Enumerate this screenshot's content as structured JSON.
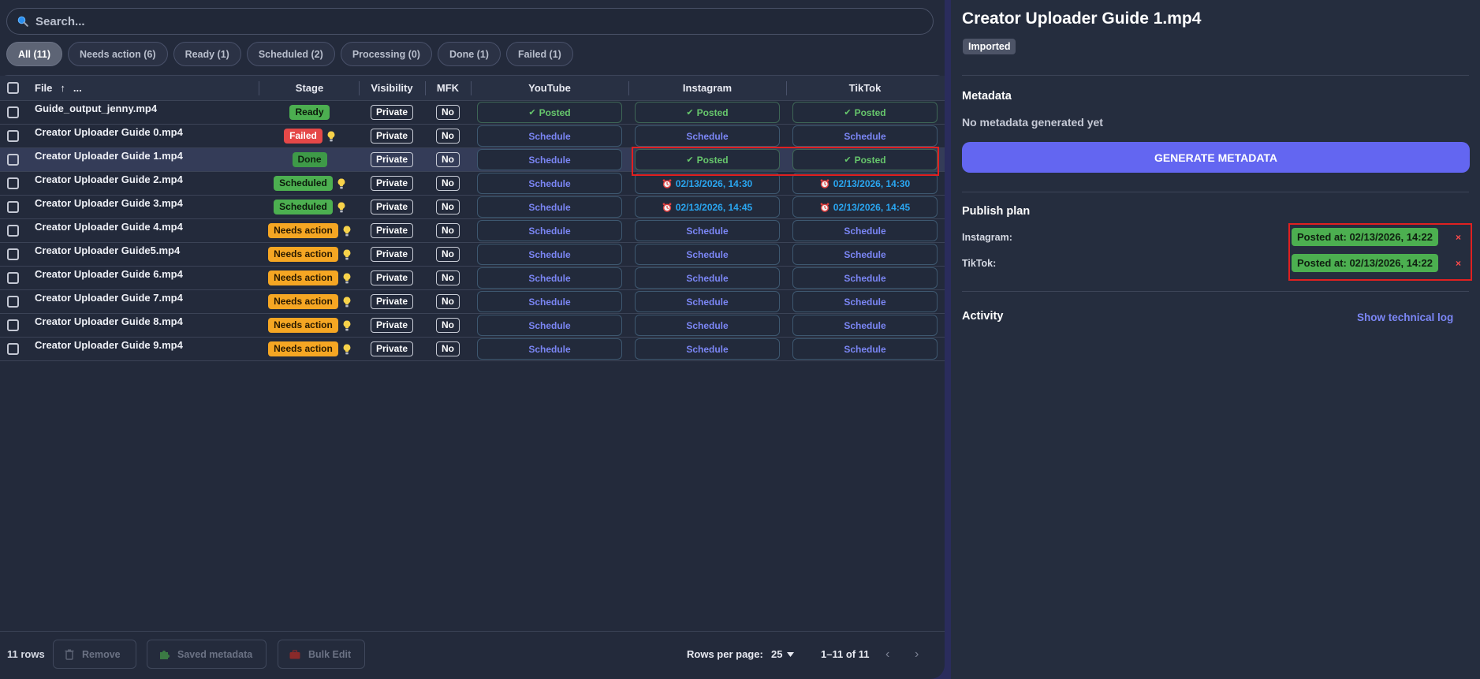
{
  "search": {
    "placeholder": "Search..."
  },
  "filters": [
    {
      "label": "All (11)",
      "active": true
    },
    {
      "label": "Needs action (6)"
    },
    {
      "label": "Ready (1)"
    },
    {
      "label": "Scheduled (2)"
    },
    {
      "label": "Processing (0)"
    },
    {
      "label": "Done (1)"
    },
    {
      "label": "Failed (1)"
    }
  ],
  "columns": {
    "file": "File",
    "sort_indicator": "↑",
    "more": "...",
    "stage": "Stage",
    "visibility": "Visibility",
    "mfk": "MFK",
    "youtube": "YouTube",
    "instagram": "Instagram",
    "tiktok": "TikTok"
  },
  "rows": [
    {
      "file": "Guide_output_jenny.mp4",
      "stage": "Ready",
      "stage_type": "ready",
      "bulb": false,
      "visibility": "Private",
      "mfk": "No",
      "youtube": {
        "type": "posted",
        "text": "Posted"
      },
      "instagram": {
        "type": "posted",
        "text": "Posted"
      },
      "tiktok": {
        "type": "posted",
        "text": "Posted"
      }
    },
    {
      "file": "Creator Uploader Guide 0.mp4",
      "stage": "Failed",
      "stage_type": "failed",
      "bulb": true,
      "visibility": "Private",
      "mfk": "No",
      "youtube": {
        "type": "schedule",
        "text": "Schedule"
      },
      "instagram": {
        "type": "schedule",
        "text": "Schedule"
      },
      "tiktok": {
        "type": "schedule",
        "text": "Schedule"
      }
    },
    {
      "file": "Creator Uploader Guide 1.mp4",
      "stage": "Done",
      "stage_type": "done",
      "bulb": false,
      "visibility": "Private",
      "mfk": "No",
      "selected": true,
      "youtube": {
        "type": "schedule",
        "text": "Schedule"
      },
      "instagram": {
        "type": "posted",
        "text": "Posted"
      },
      "tiktok": {
        "type": "posted",
        "text": "Posted"
      }
    },
    {
      "file": "Creator Uploader Guide 2.mp4",
      "stage": "Scheduled",
      "stage_type": "scheduled",
      "bulb": true,
      "visibility": "Private",
      "mfk": "No",
      "youtube": {
        "type": "schedule",
        "text": "Schedule"
      },
      "instagram": {
        "type": "time",
        "text": "02/13/2026, 14:30"
      },
      "tiktok": {
        "type": "time",
        "text": "02/13/2026, 14:30"
      }
    },
    {
      "file": "Creator Uploader Guide 3.mp4",
      "stage": "Scheduled",
      "stage_type": "scheduled",
      "bulb": true,
      "visibility": "Private",
      "mfk": "No",
      "youtube": {
        "type": "schedule",
        "text": "Schedule"
      },
      "instagram": {
        "type": "time",
        "text": "02/13/2026, 14:45"
      },
      "tiktok": {
        "type": "time",
        "text": "02/13/2026, 14:45"
      }
    },
    {
      "file": "Creator Uploader Guide 4.mp4",
      "stage": "Needs action",
      "stage_type": "needs",
      "bulb": true,
      "visibility": "Private",
      "mfk": "No",
      "youtube": {
        "type": "schedule",
        "text": "Schedule"
      },
      "instagram": {
        "type": "schedule",
        "text": "Schedule"
      },
      "tiktok": {
        "type": "schedule",
        "text": "Schedule"
      }
    },
    {
      "file": "Creator Uploader Guide5.mp4",
      "stage": "Needs action",
      "stage_type": "needs",
      "bulb": true,
      "visibility": "Private",
      "mfk": "No",
      "youtube": {
        "type": "schedule",
        "text": "Schedule"
      },
      "instagram": {
        "type": "schedule",
        "text": "Schedule"
      },
      "tiktok": {
        "type": "schedule",
        "text": "Schedule"
      }
    },
    {
      "file": "Creator Uploader Guide 6.mp4",
      "stage": "Needs action",
      "stage_type": "needs",
      "bulb": true,
      "visibility": "Private",
      "mfk": "No",
      "youtube": {
        "type": "schedule",
        "text": "Schedule"
      },
      "instagram": {
        "type": "schedule",
        "text": "Schedule"
      },
      "tiktok": {
        "type": "schedule",
        "text": "Schedule"
      }
    },
    {
      "file": "Creator Uploader Guide 7.mp4",
      "stage": "Needs action",
      "stage_type": "needs",
      "bulb": true,
      "visibility": "Private",
      "mfk": "No",
      "youtube": {
        "type": "schedule",
        "text": "Schedule"
      },
      "instagram": {
        "type": "schedule",
        "text": "Schedule"
      },
      "tiktok": {
        "type": "schedule",
        "text": "Schedule"
      }
    },
    {
      "file": "Creator Uploader Guide 8.mp4",
      "stage": "Needs action",
      "stage_type": "needs",
      "bulb": true,
      "visibility": "Private",
      "mfk": "No",
      "youtube": {
        "type": "schedule",
        "text": "Schedule"
      },
      "instagram": {
        "type": "schedule",
        "text": "Schedule"
      },
      "tiktok": {
        "type": "schedule",
        "text": "Schedule"
      }
    },
    {
      "file": "Creator Uploader Guide 9.mp4",
      "stage": "Needs action",
      "stage_type": "needs",
      "bulb": true,
      "visibility": "Private",
      "mfk": "No",
      "youtube": {
        "type": "schedule",
        "text": "Schedule"
      },
      "instagram": {
        "type": "schedule",
        "text": "Schedule"
      },
      "tiktok": {
        "type": "schedule",
        "text": "Schedule"
      }
    }
  ],
  "footer": {
    "row_count": "11 rows",
    "remove": "Remove",
    "saved_metadata": "Saved metadata",
    "bulk_edit": "Bulk Edit",
    "rows_per_page_label": "Rows per page:",
    "rows_per_page_value": "25",
    "range": "1–11 of 11",
    "prev": "‹",
    "next": "›"
  },
  "detail": {
    "title": "Creator Uploader Guide 1.mp4",
    "status": "Imported",
    "metadata_heading": "Metadata",
    "no_metadata": "No metadata generated yet",
    "generate_button": "GENERATE METADATA",
    "publish_plan_heading": "Publish plan",
    "plan": [
      {
        "platform": "Instagram:",
        "value": "Posted at: 02/13/2026, 14:22",
        "remove": "×"
      },
      {
        "platform": "TikTok:",
        "value": "Posted at: 02/13/2026, 14:22",
        "remove": "×"
      }
    ],
    "activity_heading": "Activity",
    "technical_log": "Show technical log"
  },
  "colors": {
    "accent": "#6366f1",
    "success": "#4caf50",
    "danger": "#e54848",
    "warning": "#f5a623",
    "link": "#7b86f5",
    "time": "#2aa7f2"
  }
}
